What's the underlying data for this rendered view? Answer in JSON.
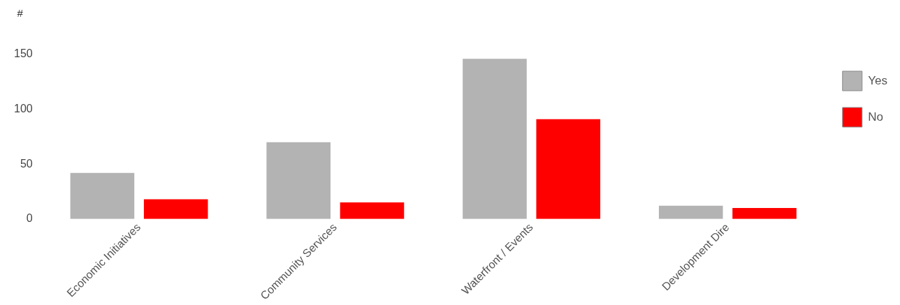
{
  "chart_data": {
    "type": "bar",
    "ylabel": "#",
    "categories": [
      "Economic Initiatives",
      "Community Services",
      "Waterfront / Events",
      "Development Dire"
    ],
    "series": [
      {
        "name": "Yes",
        "color": "#b3b3b3",
        "values": [
          42,
          70,
          146,
          12
        ]
      },
      {
        "name": "No",
        "color": "#ff0000",
        "values": [
          18,
          15,
          91,
          10
        ]
      }
    ],
    "ylim": [
      0,
      150
    ],
    "yticks": [
      0,
      50,
      100,
      150
    ],
    "grid": false,
    "legend": "top right"
  }
}
